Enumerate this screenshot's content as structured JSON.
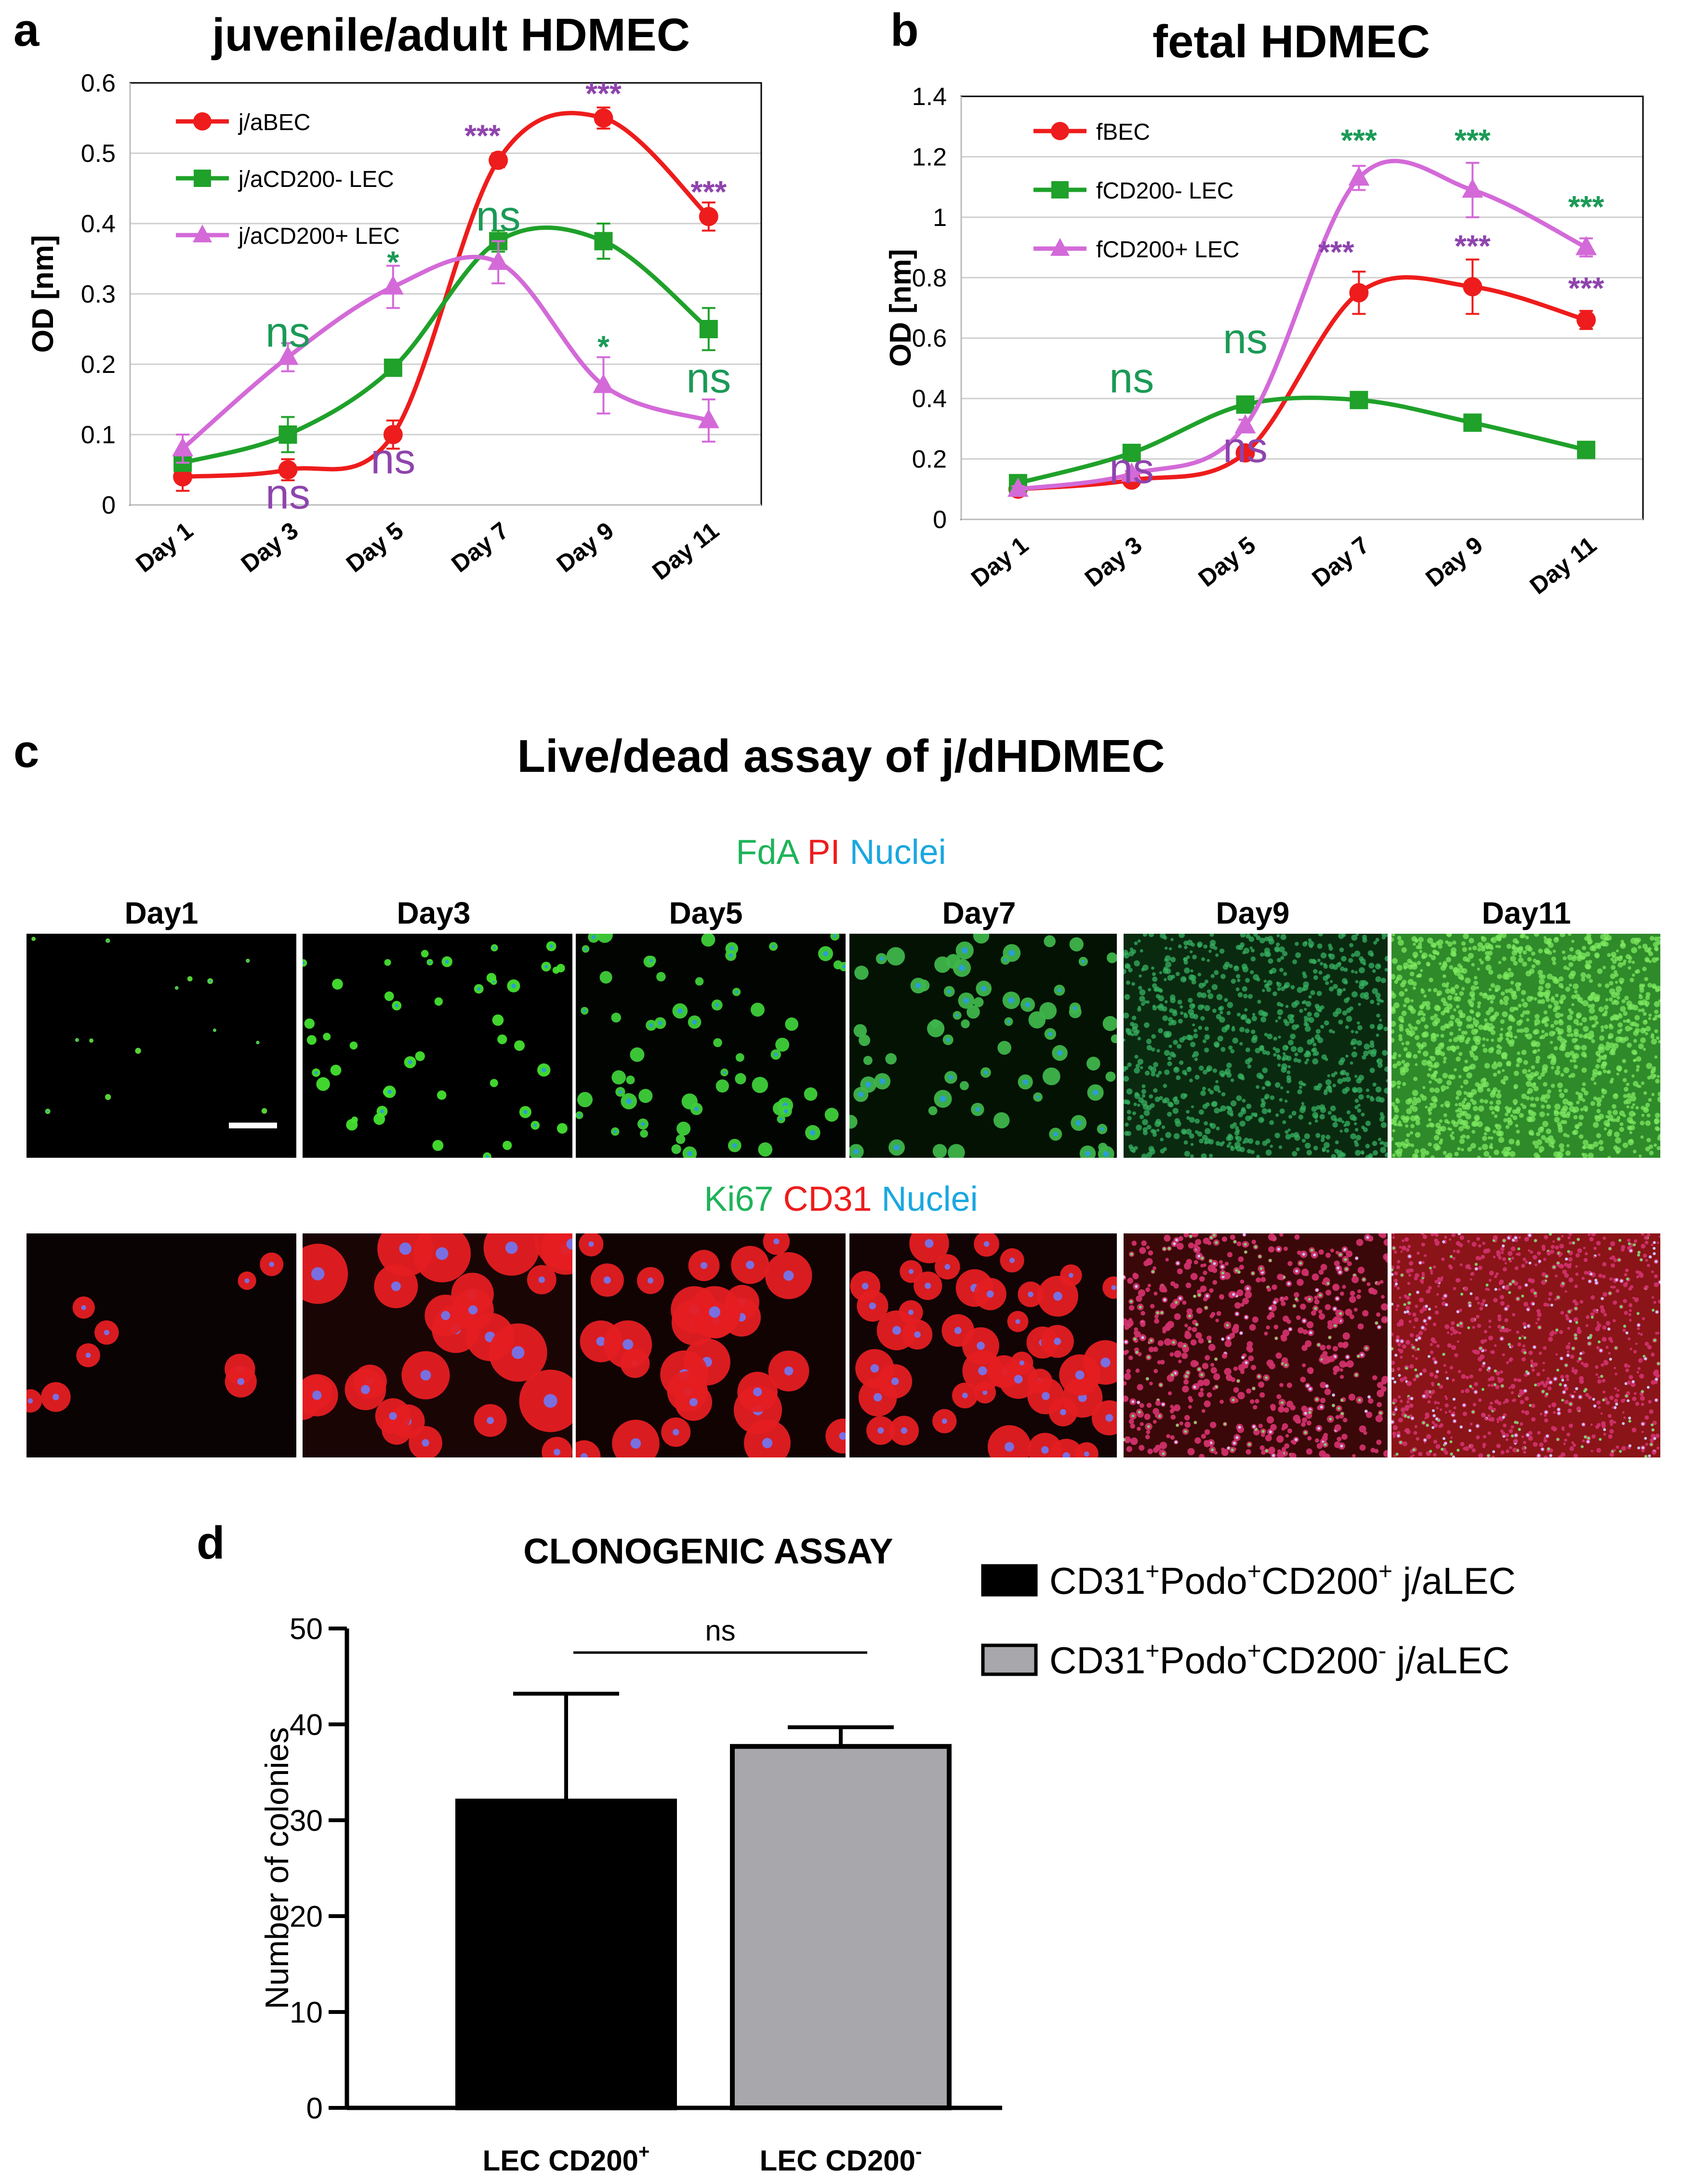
{
  "panel_a": {
    "letter": "a",
    "chart_data": {
      "type": "line",
      "title": "juvenile/adult HDMEC",
      "xlabel": "",
      "ylabel": "OD [nm]",
      "categories": [
        "Day 1",
        "Day 3",
        "Day 5",
        "Day 7",
        "Day 9",
        "Day 11"
      ],
      "ylim": [
        0,
        0.6
      ],
      "yticks": [
        "0",
        "0.1",
        "0.2",
        "0.3",
        "0.4",
        "0.5",
        "0.6"
      ],
      "grid": true,
      "legend_position": "top-left",
      "series": [
        {
          "name": "j/aBEC",
          "color": "#ee1c1c",
          "marker": "circle",
          "values": [
            0.04,
            0.05,
            0.1,
            0.49,
            0.55,
            0.41
          ],
          "errors": [
            0.02,
            0.015,
            0.02,
            0.01,
            0.015,
            0.02
          ]
        },
        {
          "name": "j/aCD200- LEC",
          "color": "#1fa12a",
          "marker": "square",
          "values": [
            0.06,
            0.1,
            0.195,
            0.375,
            0.375,
            0.25
          ],
          "errors": [
            0.01,
            0.025,
            0.005,
            0.015,
            0.025,
            0.03
          ]
        },
        {
          "name": "j/aCD200+ LEC",
          "color": "#d36ad8",
          "marker": "triangle",
          "values": [
            0.08,
            0.21,
            0.31,
            0.345,
            0.17,
            0.12
          ],
          "errors": [
            0.02,
            0.02,
            0.03,
            0.03,
            0.04,
            0.03
          ]
        }
      ],
      "annotations": [
        {
          "text": "ns",
          "color": "#1b9a56",
          "cat": 1,
          "y": 0.225
        },
        {
          "text": "ns",
          "color": "#8e44ad",
          "cat": 1,
          "y": -0.005
        },
        {
          "text": "*",
          "color": "#1b9a56",
          "cat": 2,
          "y": 0.33
        },
        {
          "text": "ns",
          "color": "#8e44ad",
          "cat": 2,
          "y": 0.045
        },
        {
          "text": "***",
          "color": "#8e44ad",
          "cat": 2.85,
          "y": 0.51
        },
        {
          "text": "ns",
          "color": "#1b9a56",
          "cat": 3,
          "y": 0.39
        },
        {
          "text": "***",
          "color": "#8e44ad",
          "cat": 4,
          "y": 0.57
        },
        {
          "text": "*",
          "color": "#1b9a56",
          "cat": 4,
          "y": 0.21
        },
        {
          "text": "***",
          "color": "#8e44ad",
          "cat": 5,
          "y": 0.43
        },
        {
          "text": "ns",
          "color": "#1b9a56",
          "cat": 5,
          "y": 0.16
        }
      ]
    }
  },
  "panel_b": {
    "letter": "b",
    "chart_data": {
      "type": "line",
      "title": "fetal HDMEC",
      "xlabel": "",
      "ylabel": "OD [nm]",
      "categories": [
        "Day 1",
        "Day 3",
        "Day 5",
        "Day 7",
        "Day 9",
        "Day 11"
      ],
      "ylim": [
        0,
        1.4
      ],
      "yticks": [
        "0",
        "0.2",
        "0.4",
        "0.6",
        "0.8",
        "1",
        "1.2",
        "1.4"
      ],
      "grid": true,
      "legend_position": "top-left",
      "series": [
        {
          "name": "fBEC",
          "color": "#ee1c1c",
          "marker": "circle",
          "values": [
            0.1,
            0.13,
            0.22,
            0.75,
            0.77,
            0.66
          ],
          "errors": [
            0.01,
            0.01,
            0.02,
            0.07,
            0.09,
            0.03
          ]
        },
        {
          "name": "fCD200- LEC",
          "color": "#1fa12a",
          "marker": "square",
          "values": [
            0.12,
            0.22,
            0.38,
            0.395,
            0.32,
            0.23
          ],
          "errors": [
            0.0,
            0.0,
            0.0,
            0.0,
            0.0,
            0.0
          ]
        },
        {
          "name": "fCD200+ LEC",
          "color": "#d36ad8",
          "marker": "triangle",
          "values": [
            0.1,
            0.15,
            0.31,
            1.13,
            1.09,
            0.9
          ],
          "errors": [
            0.01,
            0.01,
            0.02,
            0.04,
            0.09,
            0.03
          ]
        }
      ],
      "annotations": [
        {
          "text": "ns",
          "color": "#1b9a56",
          "cat": 1,
          "y": 0.42
        },
        {
          "text": "ns",
          "color": "#8e44ad",
          "cat": 1,
          "y": 0.12
        },
        {
          "text": "ns",
          "color": "#1b9a56",
          "cat": 2,
          "y": 0.55
        },
        {
          "text": "ns",
          "color": "#8e44ad",
          "cat": 2,
          "y": 0.19
        },
        {
          "text": "***",
          "color": "#8e44ad",
          "cat": 2.8,
          "y": 0.85
        },
        {
          "text": "***",
          "color": "#1b9a56",
          "cat": 3,
          "y": 1.22
        },
        {
          "text": "***",
          "color": "#8e44ad",
          "cat": 4,
          "y": 0.87
        },
        {
          "text": "***",
          "color": "#1b9a56",
          "cat": 4,
          "y": 1.22
        },
        {
          "text": "***",
          "color": "#8e44ad",
          "cat": 5,
          "y": 0.73
        },
        {
          "text": "***",
          "color": "#1b9a56",
          "cat": 5,
          "y": 1.0
        }
      ]
    }
  },
  "panel_c": {
    "letter": "c",
    "title": "Live/dead assay of j/dHDMEC",
    "row1_stains": [
      {
        "text": "FdA",
        "color": "#1fb35a"
      },
      {
        "text": "PI",
        "color": "#ee1c1c"
      },
      {
        "text": "Nuclei",
        "color": "#1aa7e0"
      }
    ],
    "row2_stains": [
      {
        "text": "Ki67",
        "color": "#1fb35a"
      },
      {
        "text": "CD31",
        "color": "#ee1c1c"
      },
      {
        "text": "Nuclei",
        "color": "#1aa7e0"
      }
    ],
    "days": [
      "Day1",
      "Day3",
      "Day5",
      "Day7",
      "Day9",
      "Day11"
    ]
  },
  "panel_d": {
    "letter": "d",
    "chart_data": {
      "type": "bar",
      "title": "CLONOGENIC ASSAY",
      "xlabel": "",
      "ylabel": "Number of colonies",
      "categories": [
        "LEC CD200",
        "LEC CD200"
      ],
      "category_superscripts": [
        "+",
        "-"
      ],
      "values": [
        32,
        37.7
      ],
      "errors": [
        11.2,
        2.0
      ],
      "colors": [
        "#000000",
        "#a8a7ac"
      ],
      "ylim": [
        0,
        50
      ],
      "yticks": [
        "0",
        "10",
        "20",
        "30",
        "40",
        "50"
      ],
      "significance": "ns",
      "legend_position": "top-right",
      "legend": [
        {
          "color": "#000000",
          "parts": [
            "CD31",
            "+",
            "Podo",
            "+",
            "CD200",
            "+",
            " j/aLEC"
          ]
        },
        {
          "color": "#a8a7ac",
          "parts": [
            "CD31",
            "+",
            "Podo",
            "+",
            "CD200",
            "-",
            " j/aLEC"
          ]
        }
      ]
    }
  }
}
